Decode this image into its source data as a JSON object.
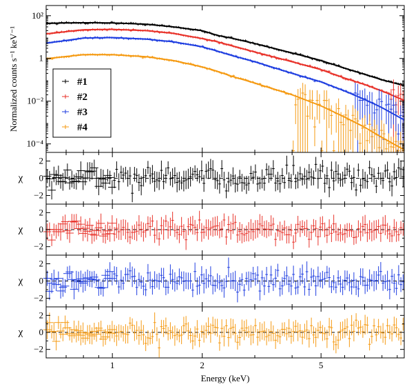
{
  "chart_data": {
    "type": "scatter",
    "x_scale": "log",
    "xlim": [
      0.6,
      9.5
    ],
    "xlabel": "Energy (keV)",
    "x_ticks": [
      {
        "value": 1,
        "label": "1"
      },
      {
        "value": 2,
        "label": "2"
      },
      {
        "value": 5,
        "label": "5"
      }
    ],
    "colors": {
      "#1": "#000000",
      "#2": "#e8322a",
      "#3": "#1f3ee0",
      "#4": "#f59a12"
    },
    "panels": [
      {
        "id": "spectrum",
        "ylabel": "Normalized counts s⁻¹ keV⁻¹",
        "y_scale": "log",
        "ylim": [
          4e-05,
          300
        ],
        "y_ticks": [
          {
            "value": 100,
            "label": "10²"
          },
          {
            "value": 1,
            "label": "1"
          },
          {
            "value": 0.01,
            "label": "10⁻²"
          },
          {
            "value": 0.0001,
            "label": "10⁻⁴"
          }
        ],
        "legend": {
          "position": "left",
          "entries": [
            "#1",
            "#2",
            "#3",
            "#4"
          ]
        },
        "series": [
          {
            "name": "#1",
            "color": "#000000",
            "data": [
              [
                0.65,
                45
              ],
              [
                0.8,
                47
              ],
              [
                1.0,
                46
              ],
              [
                1.3,
                40
              ],
              [
                1.6,
                30
              ],
              [
                2.0,
                20
              ],
              [
                2.25,
                12
              ],
              [
                2.5,
                9
              ],
              [
                3.0,
                5
              ],
              [
                4.0,
                1.8
              ],
              [
                5.0,
                0.8
              ],
              [
                6.0,
                0.35
              ],
              [
                7.0,
                0.18
              ],
              [
                8.0,
                0.1
              ],
              [
                9.0,
                0.065
              ]
            ]
          },
          {
            "name": "#2",
            "color": "#e8322a",
            "data": [
              [
                0.65,
                16
              ],
              [
                0.8,
                22
              ],
              [
                1.0,
                23
              ],
              [
                1.3,
                20
              ],
              [
                1.6,
                15
              ],
              [
                2.0,
                8.5
              ],
              [
                2.25,
                6
              ],
              [
                2.5,
                4
              ],
              [
                3.0,
                2
              ],
              [
                4.0,
                0.7
              ],
              [
                5.0,
                0.3
              ],
              [
                6.0,
                0.12
              ],
              [
                7.0,
                0.06
              ],
              [
                8.0,
                0.03
              ],
              [
                9.0,
                0.015
              ]
            ]
          },
          {
            "name": "#3",
            "color": "#1f3ee0",
            "data": [
              [
                0.65,
                6
              ],
              [
                0.8,
                9
              ],
              [
                1.0,
                9.5
              ],
              [
                1.3,
                8
              ],
              [
                1.6,
                6
              ],
              [
                2.0,
                3.5
              ],
              [
                2.25,
                2.2
              ],
              [
                2.5,
                1.4
              ],
              [
                3.0,
                0.7
              ],
              [
                4.0,
                0.2
              ],
              [
                5.0,
                0.08
              ],
              [
                6.0,
                0.03
              ],
              [
                7.0,
                0.012
              ],
              [
                8.0,
                0.005
              ],
              [
                9.0,
                0.002
              ]
            ]
          },
          {
            "name": "#4",
            "color": "#f59a12",
            "data": [
              [
                0.65,
                1.1
              ],
              [
                0.8,
                1.5
              ],
              [
                1.0,
                1.5
              ],
              [
                1.3,
                1.2
              ],
              [
                1.6,
                0.8
              ],
              [
                2.0,
                0.4
              ],
              [
                2.25,
                0.25
              ],
              [
                2.5,
                0.15
              ],
              [
                3.0,
                0.07
              ],
              [
                4.0,
                0.02
              ],
              [
                5.0,
                0.006
              ],
              [
                6.0,
                0.0018
              ],
              [
                7.0,
                0.0006
              ],
              [
                8.0,
                0.0002
              ],
              [
                9.0,
                8e-05
              ]
            ]
          }
        ]
      },
      {
        "id": "resid-1",
        "series": "#1",
        "ylabel": "χ",
        "ylim": [
          -3,
          3
        ],
        "y_ticks": [
          2,
          0,
          -2
        ]
      },
      {
        "id": "resid-2",
        "series": "#2",
        "ylabel": "χ",
        "ylim": [
          -3,
          3
        ],
        "y_ticks": [
          2,
          0,
          -2
        ]
      },
      {
        "id": "resid-3",
        "series": "#3",
        "ylabel": "χ",
        "ylim": [
          -3,
          3
        ],
        "y_ticks": [
          2,
          0,
          -2
        ]
      },
      {
        "id": "resid-4",
        "series": "#4",
        "ylabel": "χ",
        "ylim": [
          -3,
          3
        ],
        "y_ticks": [
          2,
          0,
          -2
        ]
      }
    ]
  }
}
